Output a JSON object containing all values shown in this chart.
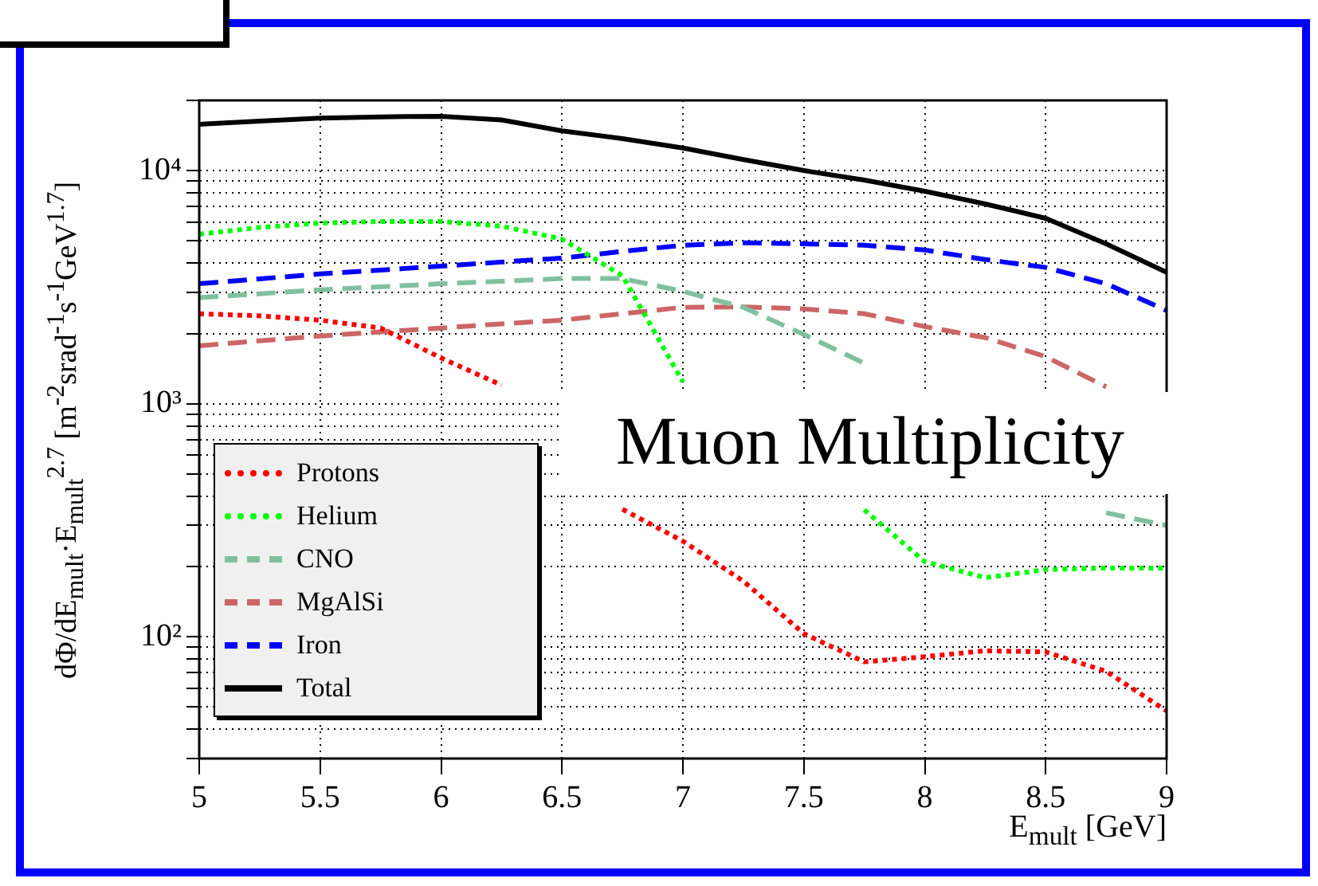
{
  "chart_data": {
    "type": "line",
    "title": "Muon Multiplicity",
    "xlabel": "E$_{mult}$ [GeV]",
    "ylabel": "dΦ/dE$_{mult}$·E$_{mult}$$^{2.7}$ [m$^{-2}$srad$^{-1}$s$^{-1}$GeV$^{1.7}$]",
    "x": [
      5,
      5.25,
      5.5,
      5.75,
      6,
      6.25,
      6.5,
      6.75,
      7,
      7.25,
      7.5,
      7.75,
      8,
      8.25,
      8.5,
      8.75,
      9
    ],
    "series": [
      {
        "name": "Protons",
        "color": "#ff0000",
        "line_style": "dotted",
        "values": [
          2430,
          2380,
          2280,
          2110,
          1570,
          1200,
          null,
          352,
          257,
          173,
          103,
          78,
          82,
          87,
          86,
          71,
          48
        ]
      },
      {
        "name": "Helium",
        "color": "#00ff00",
        "line_style": "dotted",
        "values": [
          5330,
          5700,
          5950,
          6050,
          6050,
          5770,
          5080,
          3540,
          1240,
          null,
          null,
          350,
          210,
          179,
          194,
          197,
          197
        ]
      },
      {
        "name": "CNO",
        "color": "#80c0a0",
        "line_style": "dashed",
        "values": [
          2850,
          2960,
          3080,
          3170,
          3270,
          3350,
          3440,
          3440,
          3030,
          2590,
          1980,
          1490,
          null,
          null,
          null,
          340,
          300
        ]
      },
      {
        "name": "MgAlSi",
        "color": "#cc6666",
        "line_style": "dashed",
        "values": [
          1770,
          1860,
          1950,
          2030,
          2110,
          2200,
          2280,
          2430,
          2590,
          2600,
          2550,
          2430,
          2140,
          1920,
          1590,
          1180,
          null
        ]
      },
      {
        "name": "Iron",
        "color": "#0000ff",
        "line_style": "dashed",
        "values": [
          3270,
          3430,
          3600,
          3740,
          3890,
          4050,
          4210,
          4500,
          4780,
          4900,
          4850,
          4780,
          4560,
          4150,
          3840,
          3270,
          2510
        ]
      },
      {
        "name": "Total",
        "color": "#000000",
        "line_style": "solid",
        "values": [
          15800,
          16300,
          16800,
          17000,
          17100,
          16500,
          14800,
          13700,
          12500,
          11150,
          10000,
          9100,
          8150,
          7190,
          6240,
          4850,
          3660
        ]
      }
    ],
    "log": "y",
    "xlim": [
      5,
      9
    ],
    "xticks": [
      5,
      5.5,
      6,
      6.5,
      7,
      7.5,
      8,
      8.5,
      9
    ],
    "ylim": [
      30,
      20000
    ],
    "yticks": [
      {
        "value": 30,
        "label": null
      },
      {
        "value": 40,
        "label": null
      },
      {
        "value": 50,
        "label": null
      },
      {
        "value": 60,
        "label": null
      },
      {
        "value": 70,
        "label": null
      },
      {
        "value": 80,
        "label": null
      },
      {
        "value": 90,
        "label": null
      },
      {
        "value": 100,
        "label": "10²"
      },
      {
        "value": 200,
        "label": null
      },
      {
        "value": 300,
        "label": null
      },
      {
        "value": 400,
        "label": null
      },
      {
        "value": 500,
        "label": null
      },
      {
        "value": 600,
        "label": null
      },
      {
        "value": 700,
        "label": null
      },
      {
        "value": 800,
        "label": null
      },
      {
        "value": 900,
        "label": null
      },
      {
        "value": 1000,
        "label": "10³"
      },
      {
        "value": 2000,
        "label": null
      },
      {
        "value": 3000,
        "label": null
      },
      {
        "value": 4000,
        "label": null
      },
      {
        "value": 5000,
        "label": null
      },
      {
        "value": 6000,
        "label": null
      },
      {
        "value": 7000,
        "label": null
      },
      {
        "value": 8000,
        "label": null
      },
      {
        "value": 9000,
        "label": null
      },
      {
        "value": 10000,
        "label": "10⁴"
      },
      {
        "value": 20000,
        "label": null
      }
    ],
    "grid": true,
    "legend": "bottom left"
  }
}
